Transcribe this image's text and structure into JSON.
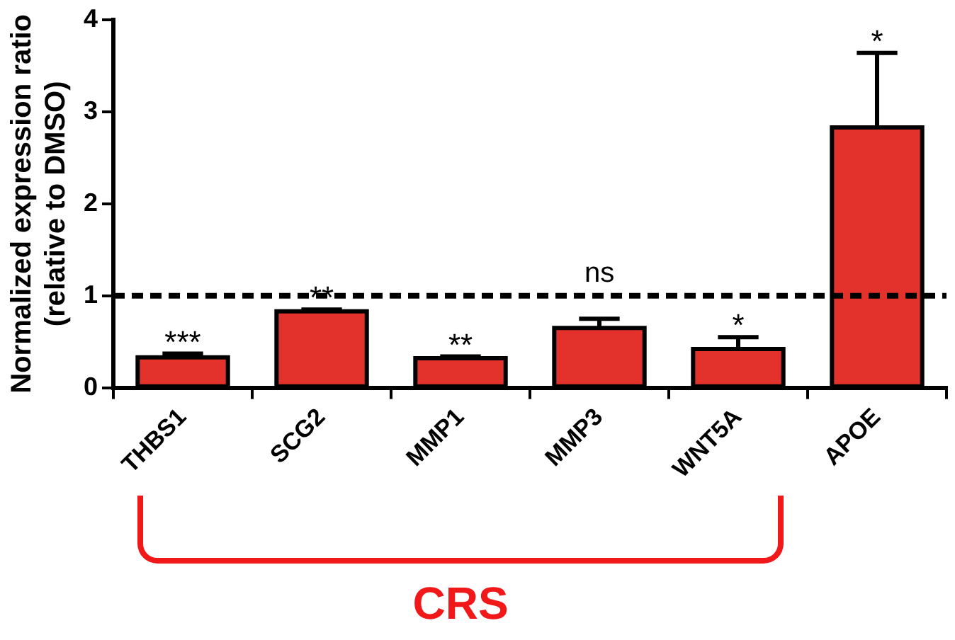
{
  "chart_data": {
    "type": "bar",
    "ylabel": "Normalized expression ratio\n(relative to DMSO)",
    "categories": [
      "THBS1",
      "SCG2",
      "MMP1",
      "MMP3",
      "WNT5A",
      "APOE"
    ],
    "values": [
      0.33,
      0.83,
      0.32,
      0.65,
      0.42,
      2.83
    ],
    "errors": [
      [
        0.33,
        0.37
      ],
      [
        0.83,
        0.85
      ],
      [
        0.32,
        0.34
      ],
      [
        0.65,
        0.75
      ],
      [
        0.42,
        0.55
      ],
      [
        2.83,
        3.64
      ]
    ],
    "color": "#e3312b",
    "ylim": [
      0,
      4
    ],
    "yticks": [
      0,
      1,
      2,
      3,
      4
    ],
    "grid": false,
    "legend": false,
    "ref_lines": [
      {
        "axis": "y",
        "value": 1,
        "line_style": "dashed",
        "color": "#000000"
      }
    ],
    "annotations": [
      {
        "text": "***",
        "x": "THBS1",
        "y": 0.37
      },
      {
        "text": "**",
        "x": "SCG2",
        "y": 0.85
      },
      {
        "text": "**",
        "x": "MMP1",
        "y": 0.34
      },
      {
        "text": "ns",
        "x": "MMP3",
        "y": 1.05
      },
      {
        "text": "*",
        "x": "WNT5A",
        "y": 0.55
      },
      {
        "text": "*",
        "x": "APOE",
        "y": 3.64
      },
      "CRS"
    ]
  }
}
